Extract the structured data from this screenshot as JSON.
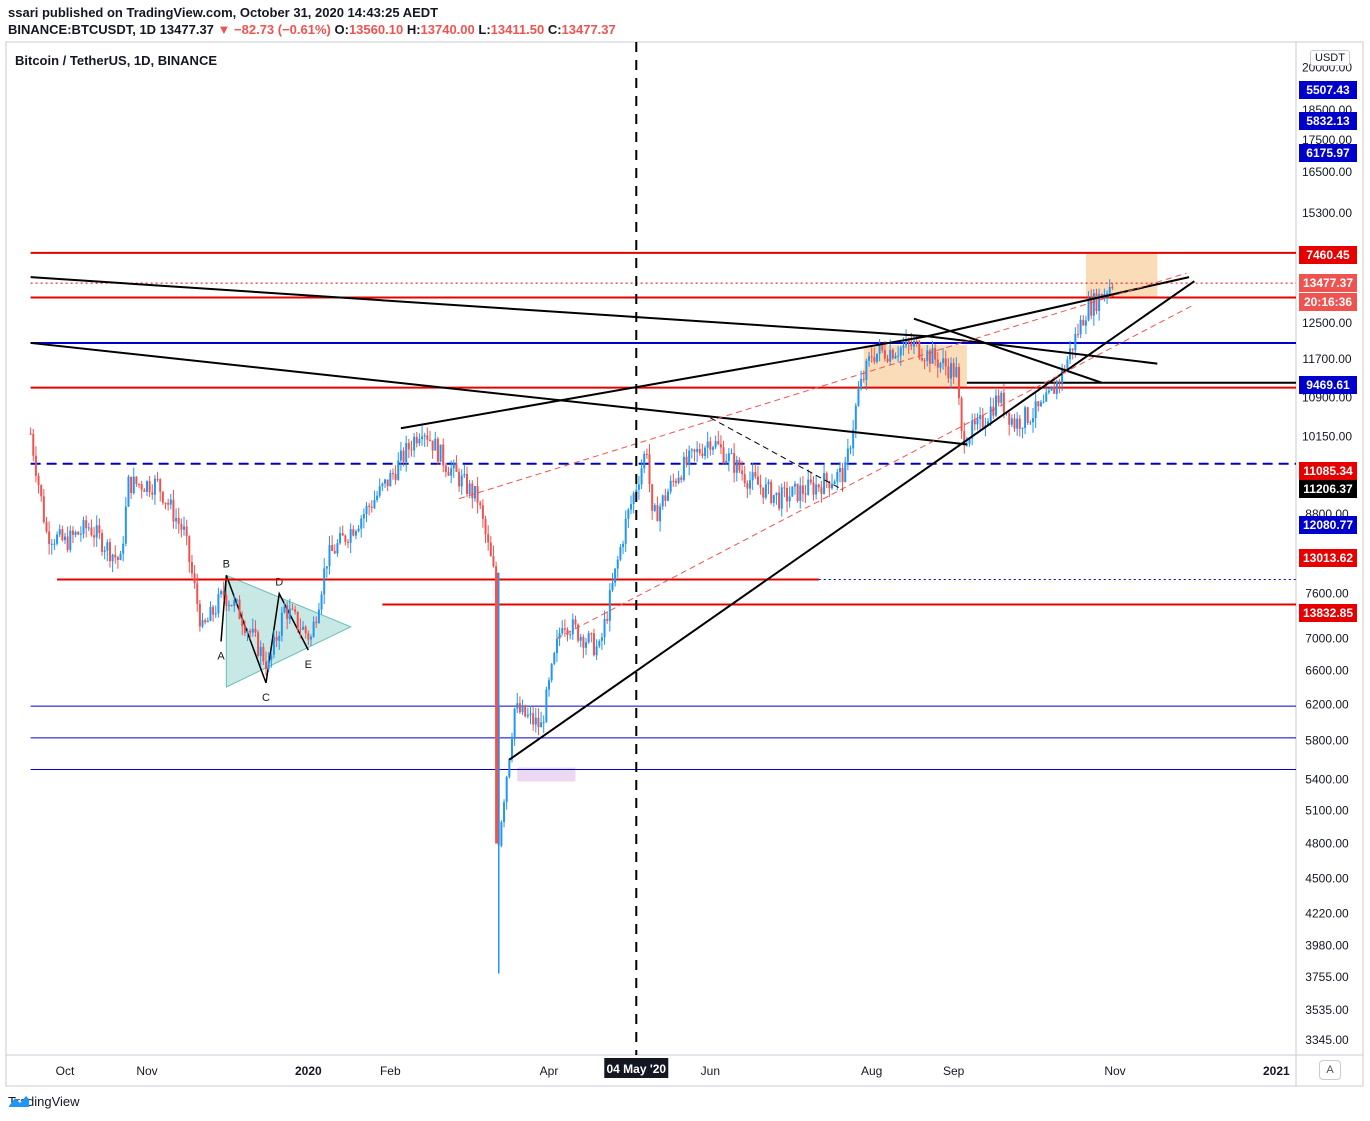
{
  "header": {
    "published": "ssari published on TradingView.com, October 31, 2020 14:43:25 AEDT",
    "symbol": "BINANCE:BTCUSDT, 1D",
    "last": "13477.37",
    "change": "▼ −82.73 (−0.61%)",
    "o_label": "O:",
    "o": "13560.10",
    "h_label": "H:",
    "h": "13740.00",
    "l_label": "L:",
    "l": "13411.50",
    "c_label": "C:",
    "c": "13477.37"
  },
  "legend": "Bitcoin / TetherUS, 1D, BINANCE",
  "currency_button": "USDT",
  "auto_button": "A",
  "footer": {
    "brand": "TradingView"
  },
  "colors": {
    "up": "#2196f3",
    "down": "#ef5350",
    "red_line": "#e60000",
    "blue_line": "#0000cc",
    "black": "#000000",
    "orange_box": "#f9c58b",
    "pink_box": "#e1bee7",
    "triangle": "#b2dfdb"
  },
  "chart_data": {
    "type": "candlestick",
    "title": "Bitcoin / TetherUS, 1D, BINANCE",
    "scale": "log",
    "ylim": [
      3345,
      20000
    ],
    "xlim": [
      "2019-09-18",
      "2021-01-08"
    ],
    "y_ticks": [
      3345,
      3535,
      3755,
      3980,
      4220,
      4500,
      4800,
      5100,
      5400,
      5800,
      6200,
      6600,
      7000,
      7600,
      8800,
      10150,
      10900,
      11700,
      12500,
      15300,
      16500,
      17500,
      18500,
      20000
    ],
    "y_tick_labels": [
      "3345.00",
      "3535.00",
      "3755.00",
      "3980.00",
      "4220.00",
      "4500.00",
      "4800.00",
      "5100.00",
      "5400.00",
      "5800.00",
      "6200.00",
      "6600.00",
      "7000.00",
      "7600.00",
      "8800.00",
      "10150.00",
      "10900.00",
      "11700.00",
      "12500.00",
      "15300.00",
      "16500.00",
      "17500.00",
      "18500.00",
      "20000.00"
    ],
    "x_ticks": [
      {
        "label": "Oct",
        "date": "2019-10-01"
      },
      {
        "label": "Nov",
        "date": "2019-11-01"
      },
      {
        "label": "2020",
        "date": "2020-01-01",
        "bold": true
      },
      {
        "label": "Feb",
        "date": "2020-02-01"
      },
      {
        "label": "Apr",
        "date": "2020-04-01"
      },
      {
        "label": "Jun",
        "date": "2020-06-01"
      },
      {
        "label": "Aug",
        "date": "2020-08-01"
      },
      {
        "label": "Sep",
        "date": "2020-09-01"
      },
      {
        "label": "Nov",
        "date": "2020-11-01"
      },
      {
        "label": "2021",
        "date": "2021-01-01",
        "bold": true
      }
    ],
    "crosshair": {
      "date": "2020-05-04",
      "label": "04 May '20"
    },
    "price_badges": [
      {
        "text": "5507.43",
        "bg": "#0000cc",
        "fg": "#ffffff"
      },
      {
        "text": "5832.13",
        "bg": "#0000cc",
        "fg": "#ffffff"
      },
      {
        "text": "6175.97",
        "bg": "#0000cc",
        "fg": "#ffffff"
      },
      {
        "text": "7460.45",
        "bg": "#e60000",
        "fg": "#ffffff"
      },
      {
        "text": "13477.37",
        "bg": "#ef5350",
        "fg": "#ffffff"
      },
      {
        "text": "20:16:36",
        "bg": "#ef5350",
        "fg": "#ffffff"
      },
      {
        "text": "9469.61",
        "bg": "#0000cc",
        "fg": "#ffffff"
      },
      {
        "text": "11085.34",
        "bg": "#e60000",
        "fg": "#ffffff"
      },
      {
        "text": "11206.37",
        "bg": "#000000",
        "fg": "#ffffff"
      },
      {
        "text": "12080.77",
        "bg": "#0000cc",
        "fg": "#ffffff"
      },
      {
        "text": "13013.62",
        "bg": "#e60000",
        "fg": "#ffffff"
      },
      {
        "text": "13832.85",
        "bg": "#e60000",
        "fg": "#ffffff"
      }
    ],
    "horizontal_lines": [
      {
        "price": 14220,
        "color": "#e60000",
        "style": "solid",
        "from": "2019-09-18"
      },
      {
        "price": 13450,
        "color": "#e60000",
        "style": "dotted",
        "from": "2019-09-18"
      },
      {
        "price": 13100,
        "color": "#e60000",
        "style": "solid",
        "from": "2019-09-18"
      },
      {
        "price": 12050,
        "color": "#0000cc",
        "style": "solid",
        "from": "2019-09-18"
      },
      {
        "price": 11100,
        "color": "#e60000",
        "style": "solid",
        "from": "2019-09-18"
      },
      {
        "price": 11200,
        "color": "#000000",
        "style": "solid",
        "from": "2020-09-06"
      },
      {
        "price": 9650,
        "color": "#0000cc",
        "style": "dashed",
        "from": "2019-09-18"
      },
      {
        "price": 7800,
        "color": "#e60000",
        "style": "solid",
        "from": "2019-09-28",
        "to": "2020-07-12"
      },
      {
        "price": 7800,
        "color": "#0000cc",
        "style": "dotted",
        "from": "2020-07-12"
      },
      {
        "price": 7450,
        "color": "#e60000",
        "style": "solid",
        "from": "2020-01-29"
      },
      {
        "price": 6180,
        "color": "#0000cc",
        "style": "solid",
        "from": "2019-09-18"
      },
      {
        "price": 5830,
        "color": "#0000cc",
        "style": "solid",
        "from": "2019-09-18"
      },
      {
        "price": 5500,
        "color": "#0000cc",
        "style": "solid",
        "from": "2019-09-18"
      }
    ],
    "trend_lines": [
      {
        "from": [
          "2019-09-18",
          13600
        ],
        "to": [
          "2020-08-22",
          12200
        ],
        "color": "#000000",
        "width": 2
      },
      {
        "from": [
          "2020-08-22",
          12200
        ],
        "to": [
          "2020-11-17",
          11600
        ],
        "color": "#000000",
        "width": 2
      },
      {
        "from": [
          "2019-09-18",
          12050
        ],
        "to": [
          "2020-09-06",
          10000
        ],
        "color": "#000000",
        "width": 2
      },
      {
        "from": [
          "2020-02-05",
          10300
        ],
        "to": [
          "2020-08-22",
          12200
        ],
        "color": "#000000",
        "width": 2
      },
      {
        "from": [
          "2020-08-22",
          12200
        ],
        "to": [
          "2020-11-29",
          13600
        ],
        "color": "#000000",
        "width": 2
      },
      {
        "from": [
          "2020-08-17",
          12600
        ],
        "to": [
          "2020-10-27",
          11200
        ],
        "color": "#000000",
        "width": 2
      },
      {
        "from": [
          "2020-03-17",
          5600
        ],
        "to": [
          "2020-12-01",
          13500
        ],
        "color": "#000000",
        "width": 2
      },
      {
        "from": [
          "2020-02-27",
          9050
        ],
        "to": [
          "2020-11-28",
          13700
        ],
        "color": "#ef5350",
        "width": 1,
        "dash": true
      },
      {
        "from": [
          "2020-04-04",
          7000
        ],
        "to": [
          "2020-11-30",
          12900
        ],
        "color": "#ef5350",
        "width": 1,
        "dash": true
      },
      {
        "from": [
          "2020-06-01",
          10500
        ],
        "to": [
          "2020-07-21",
          9200
        ],
        "color": "#000000",
        "width": 1,
        "dash": true
      }
    ],
    "boxes": [
      {
        "from": "2020-10-21",
        "to": "2020-11-17",
        "top": 14200,
        "bottom": 13100,
        "color": "#f9c58b"
      },
      {
        "from": "2020-07-29",
        "to": "2020-09-06",
        "top": 12000,
        "bottom": 11100,
        "color": "#f9c58b"
      },
      {
        "from": "2020-03-20",
        "to": "2020-04-11",
        "top": 5520,
        "bottom": 5380,
        "color": "#e1bee7"
      }
    ],
    "triangle_pattern": {
      "points": [
        [
          "2019-12-01",
          7860
        ],
        [
          "2020-01-17",
          7150
        ],
        [
          "2019-12-01",
          6400
        ]
      ],
      "labels": [
        {
          "text": "A",
          "date": "2019-11-29",
          "price": 6960,
          "pos": "below"
        },
        {
          "text": "B",
          "date": "2019-12-01",
          "price": 7860,
          "pos": "above"
        },
        {
          "text": "C",
          "date": "2019-12-16",
          "price": 6450,
          "pos": "below"
        },
        {
          "text": "D",
          "date": "2019-12-21",
          "price": 7600,
          "pos": "above"
        },
        {
          "text": "E",
          "date": "2020-01-01",
          "price": 6850,
          "pos": "below"
        }
      ]
    },
    "closes_anchor": [
      [
        "2019-09-18",
        10200
      ],
      [
        "2019-09-24",
        8500
      ],
      [
        "2019-10-01",
        8350
      ],
      [
        "2019-10-10",
        8600
      ],
      [
        "2019-10-22",
        8050
      ],
      [
        "2019-10-25",
        9300
      ],
      [
        "2019-11-05",
        9300
      ],
      [
        "2019-11-15",
        8500
      ],
      [
        "2019-11-22",
        7100
      ],
      [
        "2019-11-30",
        7600
      ],
      [
        "2019-12-05",
        7400
      ],
      [
        "2019-12-17",
        6650
      ],
      [
        "2019-12-23",
        7400
      ],
      [
        "2020-01-02",
        7000
      ],
      [
        "2020-01-08",
        8100
      ],
      [
        "2020-01-20",
        8700
      ],
      [
        "2020-02-01",
        9400
      ],
      [
        "2020-02-13",
        10350
      ],
      [
        "2020-02-22",
        9650
      ],
      [
        "2020-03-05",
        9050
      ],
      [
        "2020-03-11",
        7900
      ],
      [
        "2020-03-13",
        4850
      ],
      [
        "2020-03-19",
        6150
      ],
      [
        "2020-03-29",
        5950
      ],
      [
        "2020-04-06",
        7250
      ],
      [
        "2020-04-20",
        6850
      ],
      [
        "2020-04-30",
        8650
      ],
      [
        "2020-05-08",
        9950
      ],
      [
        "2020-05-10",
        8700
      ],
      [
        "2020-05-20",
        9500
      ],
      [
        "2020-06-01",
        10100
      ],
      [
        "2020-06-15",
        9400
      ],
      [
        "2020-06-27",
        9050
      ],
      [
        "2020-07-10",
        9250
      ],
      [
        "2020-07-22",
        9500
      ],
      [
        "2020-07-27",
        11000
      ],
      [
        "2020-08-01",
        11800
      ],
      [
        "2020-08-17",
        12000
      ],
      [
        "2020-09-02",
        11400
      ],
      [
        "2020-09-04",
        10150
      ],
      [
        "2020-09-10",
        10300
      ],
      [
        "2020-09-18",
        10900
      ],
      [
        "2020-09-24",
        10400
      ],
      [
        "2020-10-05",
        10700
      ],
      [
        "2020-10-12",
        11400
      ],
      [
        "2020-10-21",
        12800
      ],
      [
        "2020-10-26",
        13100
      ],
      [
        "2020-10-31",
        13477.37
      ]
    ]
  }
}
